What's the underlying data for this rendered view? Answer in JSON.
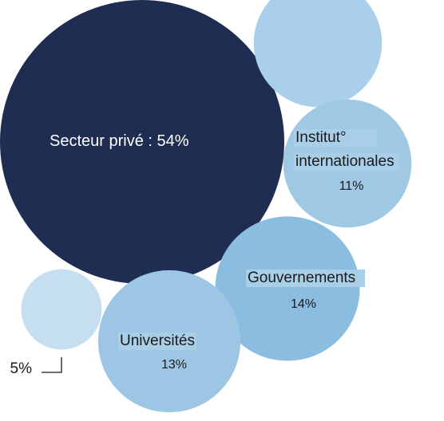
{
  "chart_data": {
    "type": "bubble",
    "title": "",
    "bubbles": [
      {
        "label": "Secteur privé : 54%",
        "value": 54,
        "color": "#1f2d52"
      },
      {
        "label": "",
        "value": 11,
        "color": "#aacfea"
      },
      {
        "label_lines": [
          "Institut°",
          "internationales"
        ],
        "value_label": "11%",
        "value": 11,
        "color": "#9fc8e5"
      },
      {
        "label": "Gouvernements",
        "value_label": "14%",
        "value": 14,
        "color": "#8bbde1"
      },
      {
        "label": "Universités",
        "value_label": "13%",
        "value": 13,
        "color": "#9dc6e4"
      },
      {
        "label": "",
        "value": 5,
        "value_label": "5%",
        "color": "#c5def0"
      }
    ]
  }
}
